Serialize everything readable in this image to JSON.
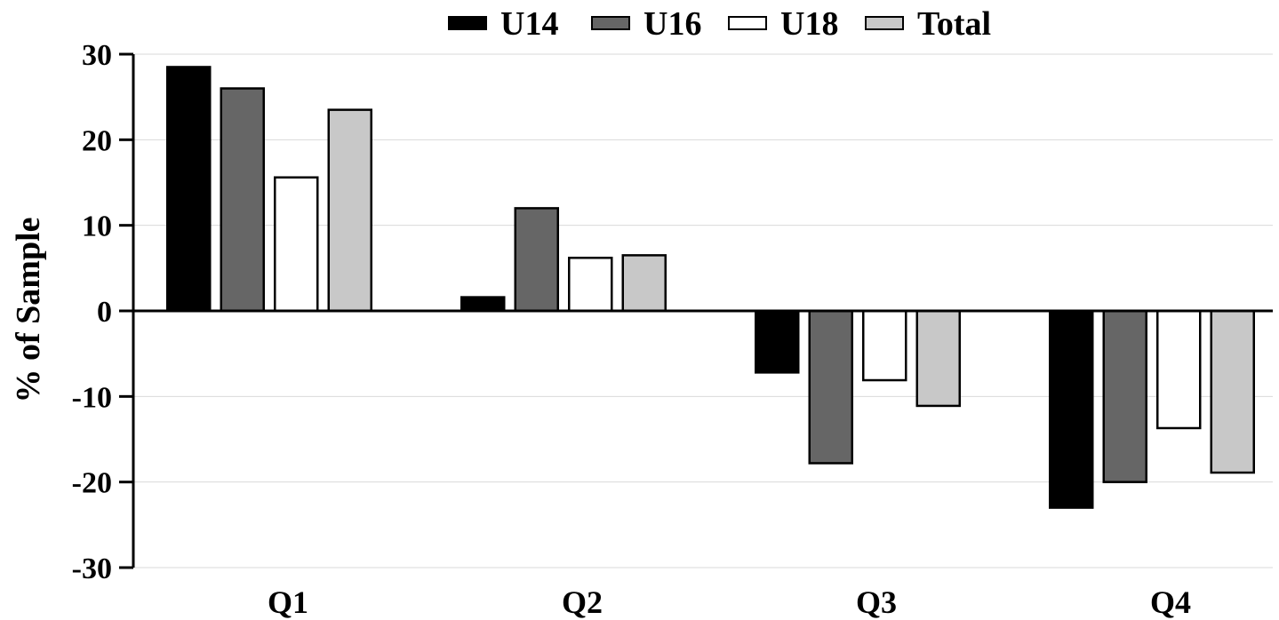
{
  "chart_data": {
    "type": "bar",
    "title": "",
    "xlabel": "",
    "ylabel": "% of Sample",
    "ylim": [
      -30,
      30
    ],
    "yticks": [
      30,
      20,
      10,
      0,
      -10,
      -20,
      -30
    ],
    "ytick_labels": [
      "30",
      "20",
      "10",
      "0",
      "-10",
      "-20",
      "-30"
    ],
    "grid": true,
    "legend_position": "top-center",
    "categories": [
      "Q1",
      "Q2",
      "Q3",
      "Q4"
    ],
    "series": [
      {
        "name": "U14",
        "color": "#000000",
        "values": [
          28.5,
          1.6,
          -7.2,
          -23.0
        ]
      },
      {
        "name": "U16",
        "color": "#666666",
        "values": [
          26.0,
          12.0,
          -17.8,
          -20.0
        ]
      },
      {
        "name": "U18",
        "color": "#ffffff",
        "values": [
          15.6,
          6.2,
          -8.1,
          -13.7
        ]
      },
      {
        "name": "Total",
        "color": "#c8c8c8",
        "values": [
          23.5,
          6.5,
          -11.1,
          -18.9
        ]
      }
    ]
  }
}
